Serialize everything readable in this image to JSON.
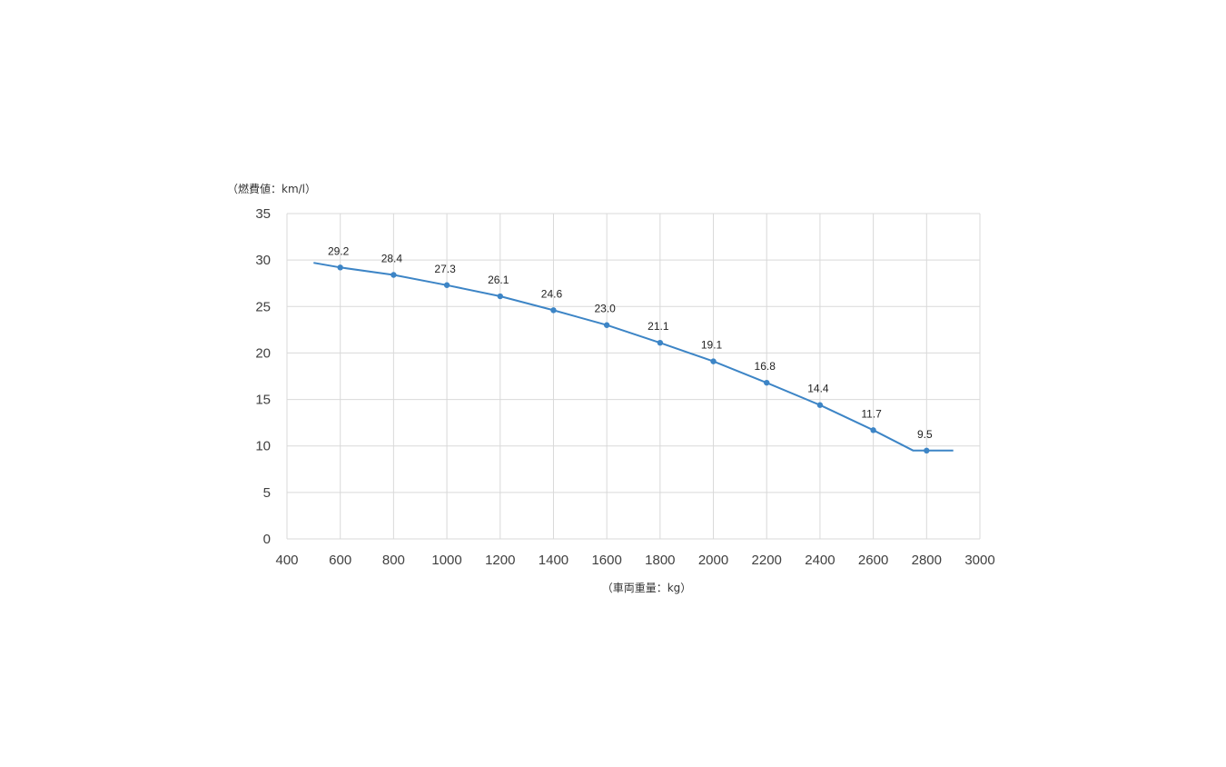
{
  "chart_data": {
    "type": "line",
    "ylabel": "（燃費値：km/l）",
    "xlabel": "（車両重量：kg）",
    "xlim": [
      400,
      3000
    ],
    "ylim": [
      0,
      35
    ],
    "x_ticks": [
      400,
      600,
      800,
      1000,
      1200,
      1400,
      1600,
      1800,
      2000,
      2200,
      2400,
      2600,
      2800,
      3000
    ],
    "y_ticks": [
      0,
      5,
      10,
      15,
      20,
      25,
      30,
      35
    ],
    "grid": true,
    "legend": "none",
    "color": "#3d85c6",
    "line_x": [
      500,
      600,
      800,
      1000,
      1200,
      1400,
      1600,
      1800,
      2000,
      2200,
      2400,
      2600,
      2750,
      2800,
      2900
    ],
    "line_y": [
      29.7,
      29.2,
      28.4,
      27.3,
      26.1,
      24.6,
      23.0,
      21.1,
      19.1,
      16.8,
      14.4,
      11.7,
      9.5,
      9.5,
      9.5
    ],
    "points": [
      {
        "x": 600,
        "y": 29.2,
        "label": "29.2"
      },
      {
        "x": 800,
        "y": 28.4,
        "label": "28.4"
      },
      {
        "x": 1000,
        "y": 27.3,
        "label": "27.3"
      },
      {
        "x": 1200,
        "y": 26.1,
        "label": "26.1"
      },
      {
        "x": 1400,
        "y": 24.6,
        "label": "24.6"
      },
      {
        "x": 1600,
        "y": 23.0,
        "label": "23.0"
      },
      {
        "x": 1800,
        "y": 21.1,
        "label": "21.1"
      },
      {
        "x": 2000,
        "y": 19.1,
        "label": "19.1"
      },
      {
        "x": 2200,
        "y": 16.8,
        "label": "16.8"
      },
      {
        "x": 2400,
        "y": 14.4,
        "label": "14.4"
      },
      {
        "x": 2600,
        "y": 11.7,
        "label": "11.7"
      },
      {
        "x": 2800,
        "y": 9.5,
        "label": "9.5"
      }
    ]
  }
}
